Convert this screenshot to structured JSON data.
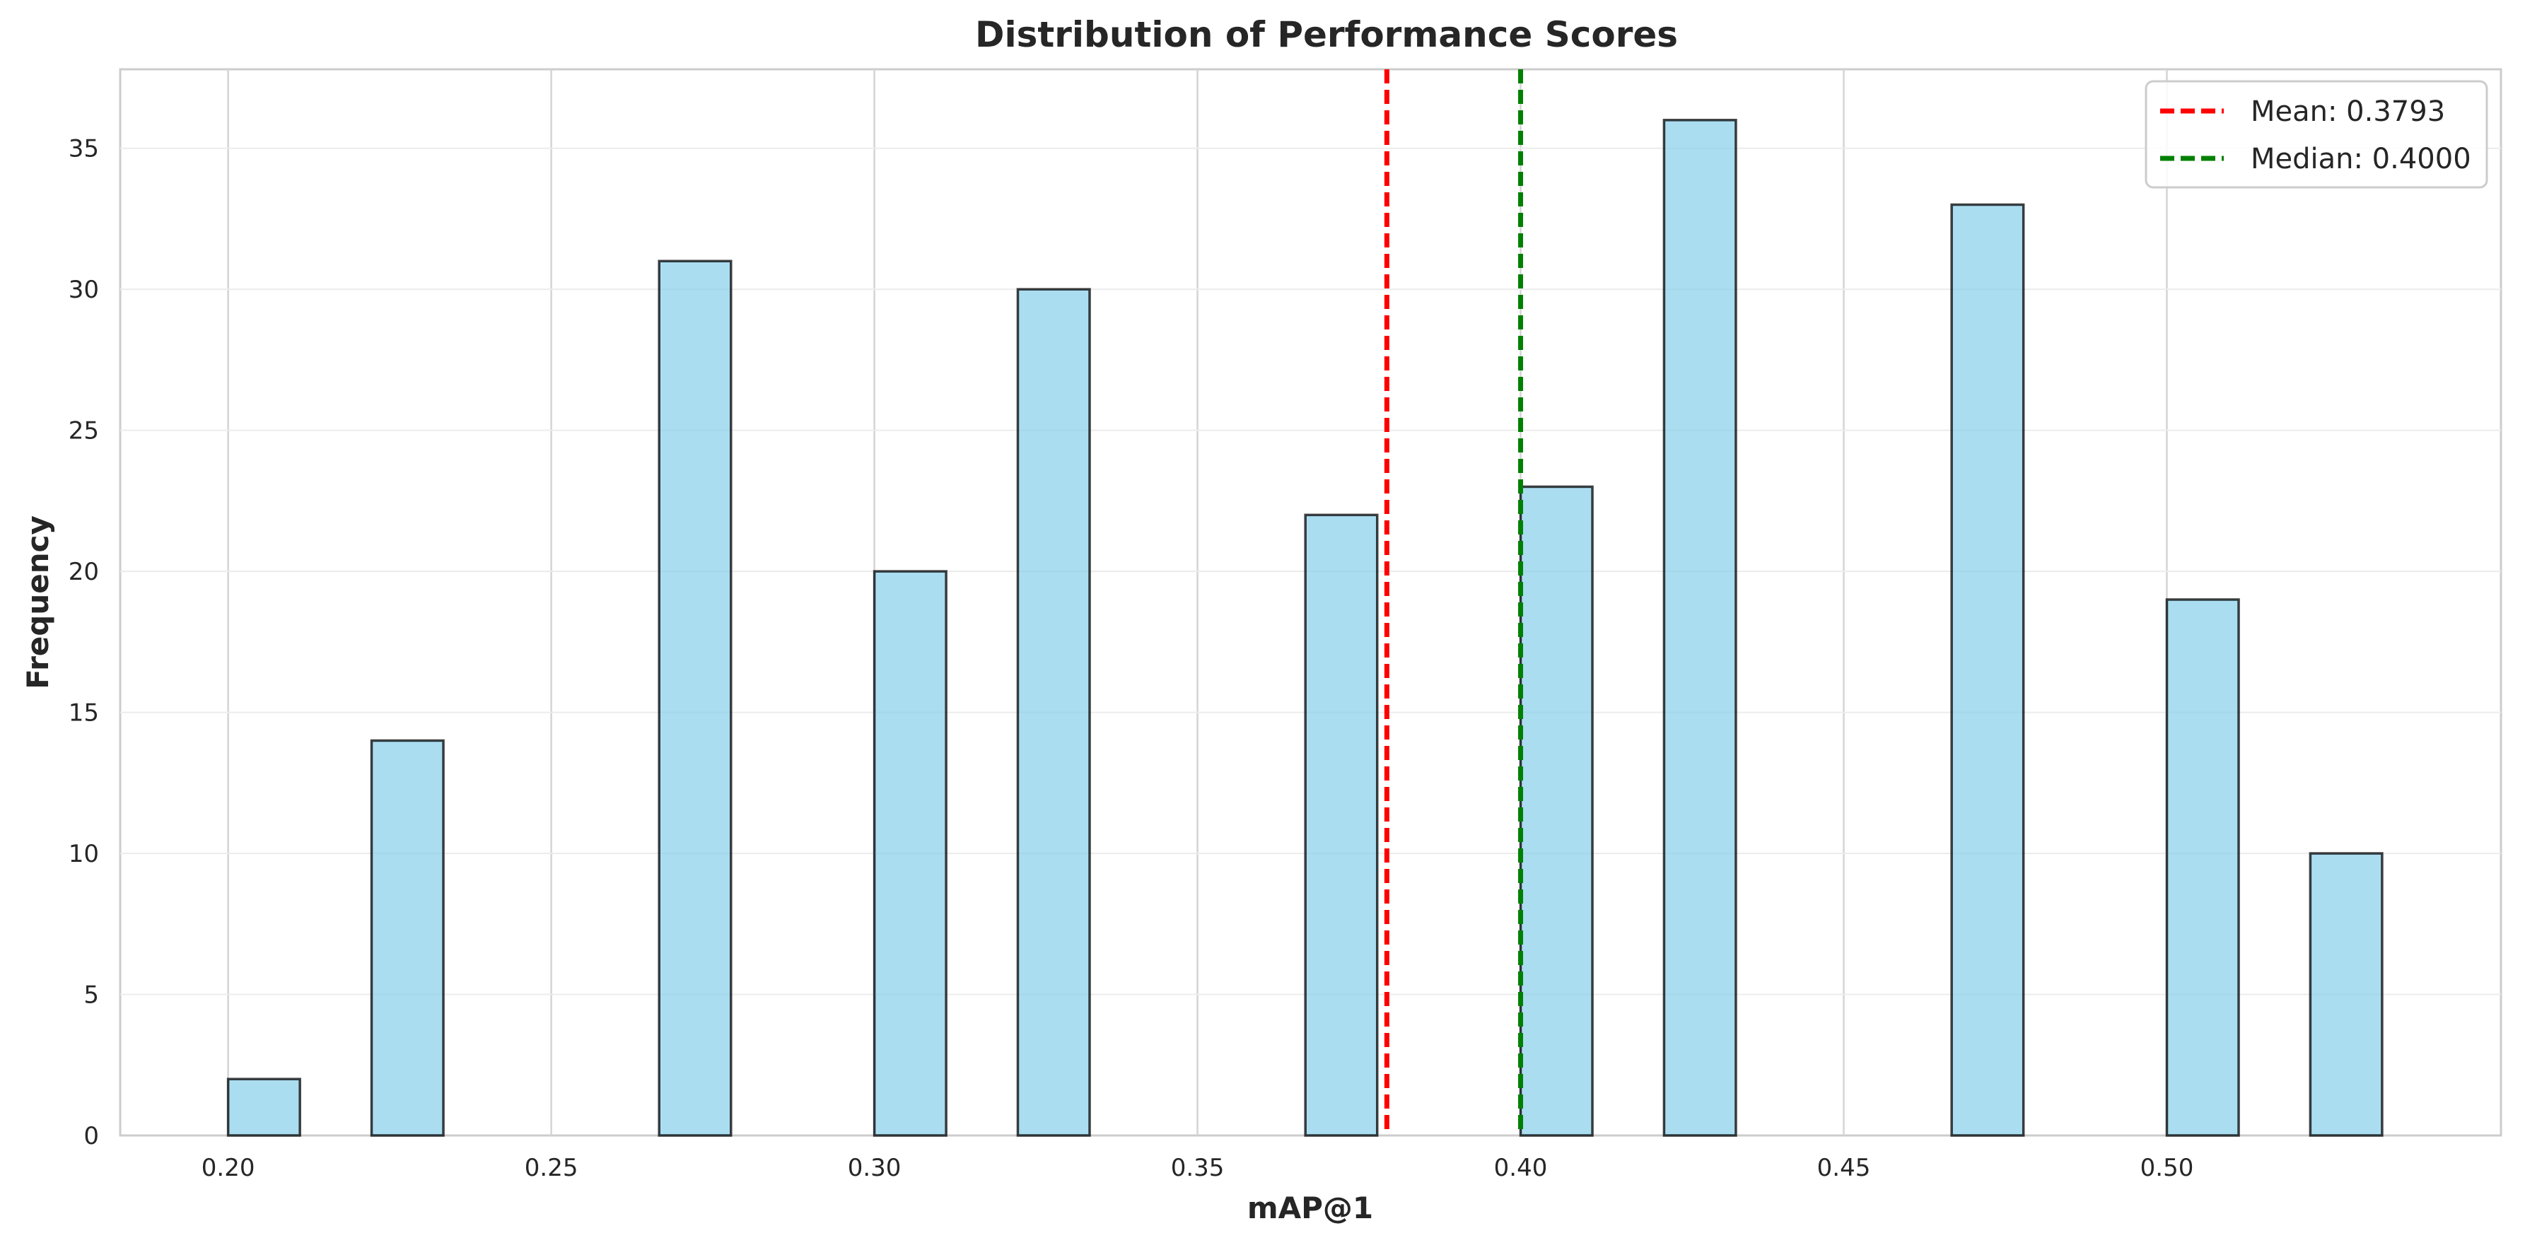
{
  "chart_data": {
    "type": "bar",
    "subtype": "histogram",
    "title": "Distribution of Performance Scores",
    "xlabel": "mAP@1",
    "ylabel": "Frequency",
    "xlim": [
      0.1833,
      0.5517
    ],
    "ylim": [
      0,
      37.8
    ],
    "xticks": [
      0.2,
      0.25,
      0.3,
      0.35,
      0.4,
      0.45,
      0.5
    ],
    "xtick_labels": [
      "0.20",
      "0.25",
      "0.30",
      "0.35",
      "0.40",
      "0.45",
      "0.50"
    ],
    "yticks": [
      0,
      5,
      10,
      15,
      20,
      25,
      30,
      35
    ],
    "ytick_labels": [
      "0",
      "5",
      "10",
      "15",
      "20",
      "25",
      "30",
      "35"
    ],
    "bin_width": 0.01111,
    "bins": [
      {
        "x0": 0.2,
        "count": 2
      },
      {
        "x0": 0.2222,
        "count": 14
      },
      {
        "x0": 0.2667,
        "count": 31
      },
      {
        "x0": 0.3,
        "count": 20
      },
      {
        "x0": 0.3222,
        "count": 30
      },
      {
        "x0": 0.3667,
        "count": 22
      },
      {
        "x0": 0.4,
        "count": 23
      },
      {
        "x0": 0.4222,
        "count": 36
      },
      {
        "x0": 0.4667,
        "count": 33
      },
      {
        "x0": 0.5,
        "count": 19
      },
      {
        "x0": 0.5222,
        "count": 10
      }
    ],
    "bar_color": "#87CEEB",
    "bar_edge_color": "#000000",
    "grid": true,
    "legend_position": "top-right",
    "reference_lines": [
      {
        "label": "Mean: 0.3793",
        "value": 0.3793,
        "color": "#ff0000",
        "style": "dashed"
      },
      {
        "label": "Median: 0.4000",
        "value": 0.4,
        "color": "#008000",
        "style": "dashed"
      }
    ]
  }
}
